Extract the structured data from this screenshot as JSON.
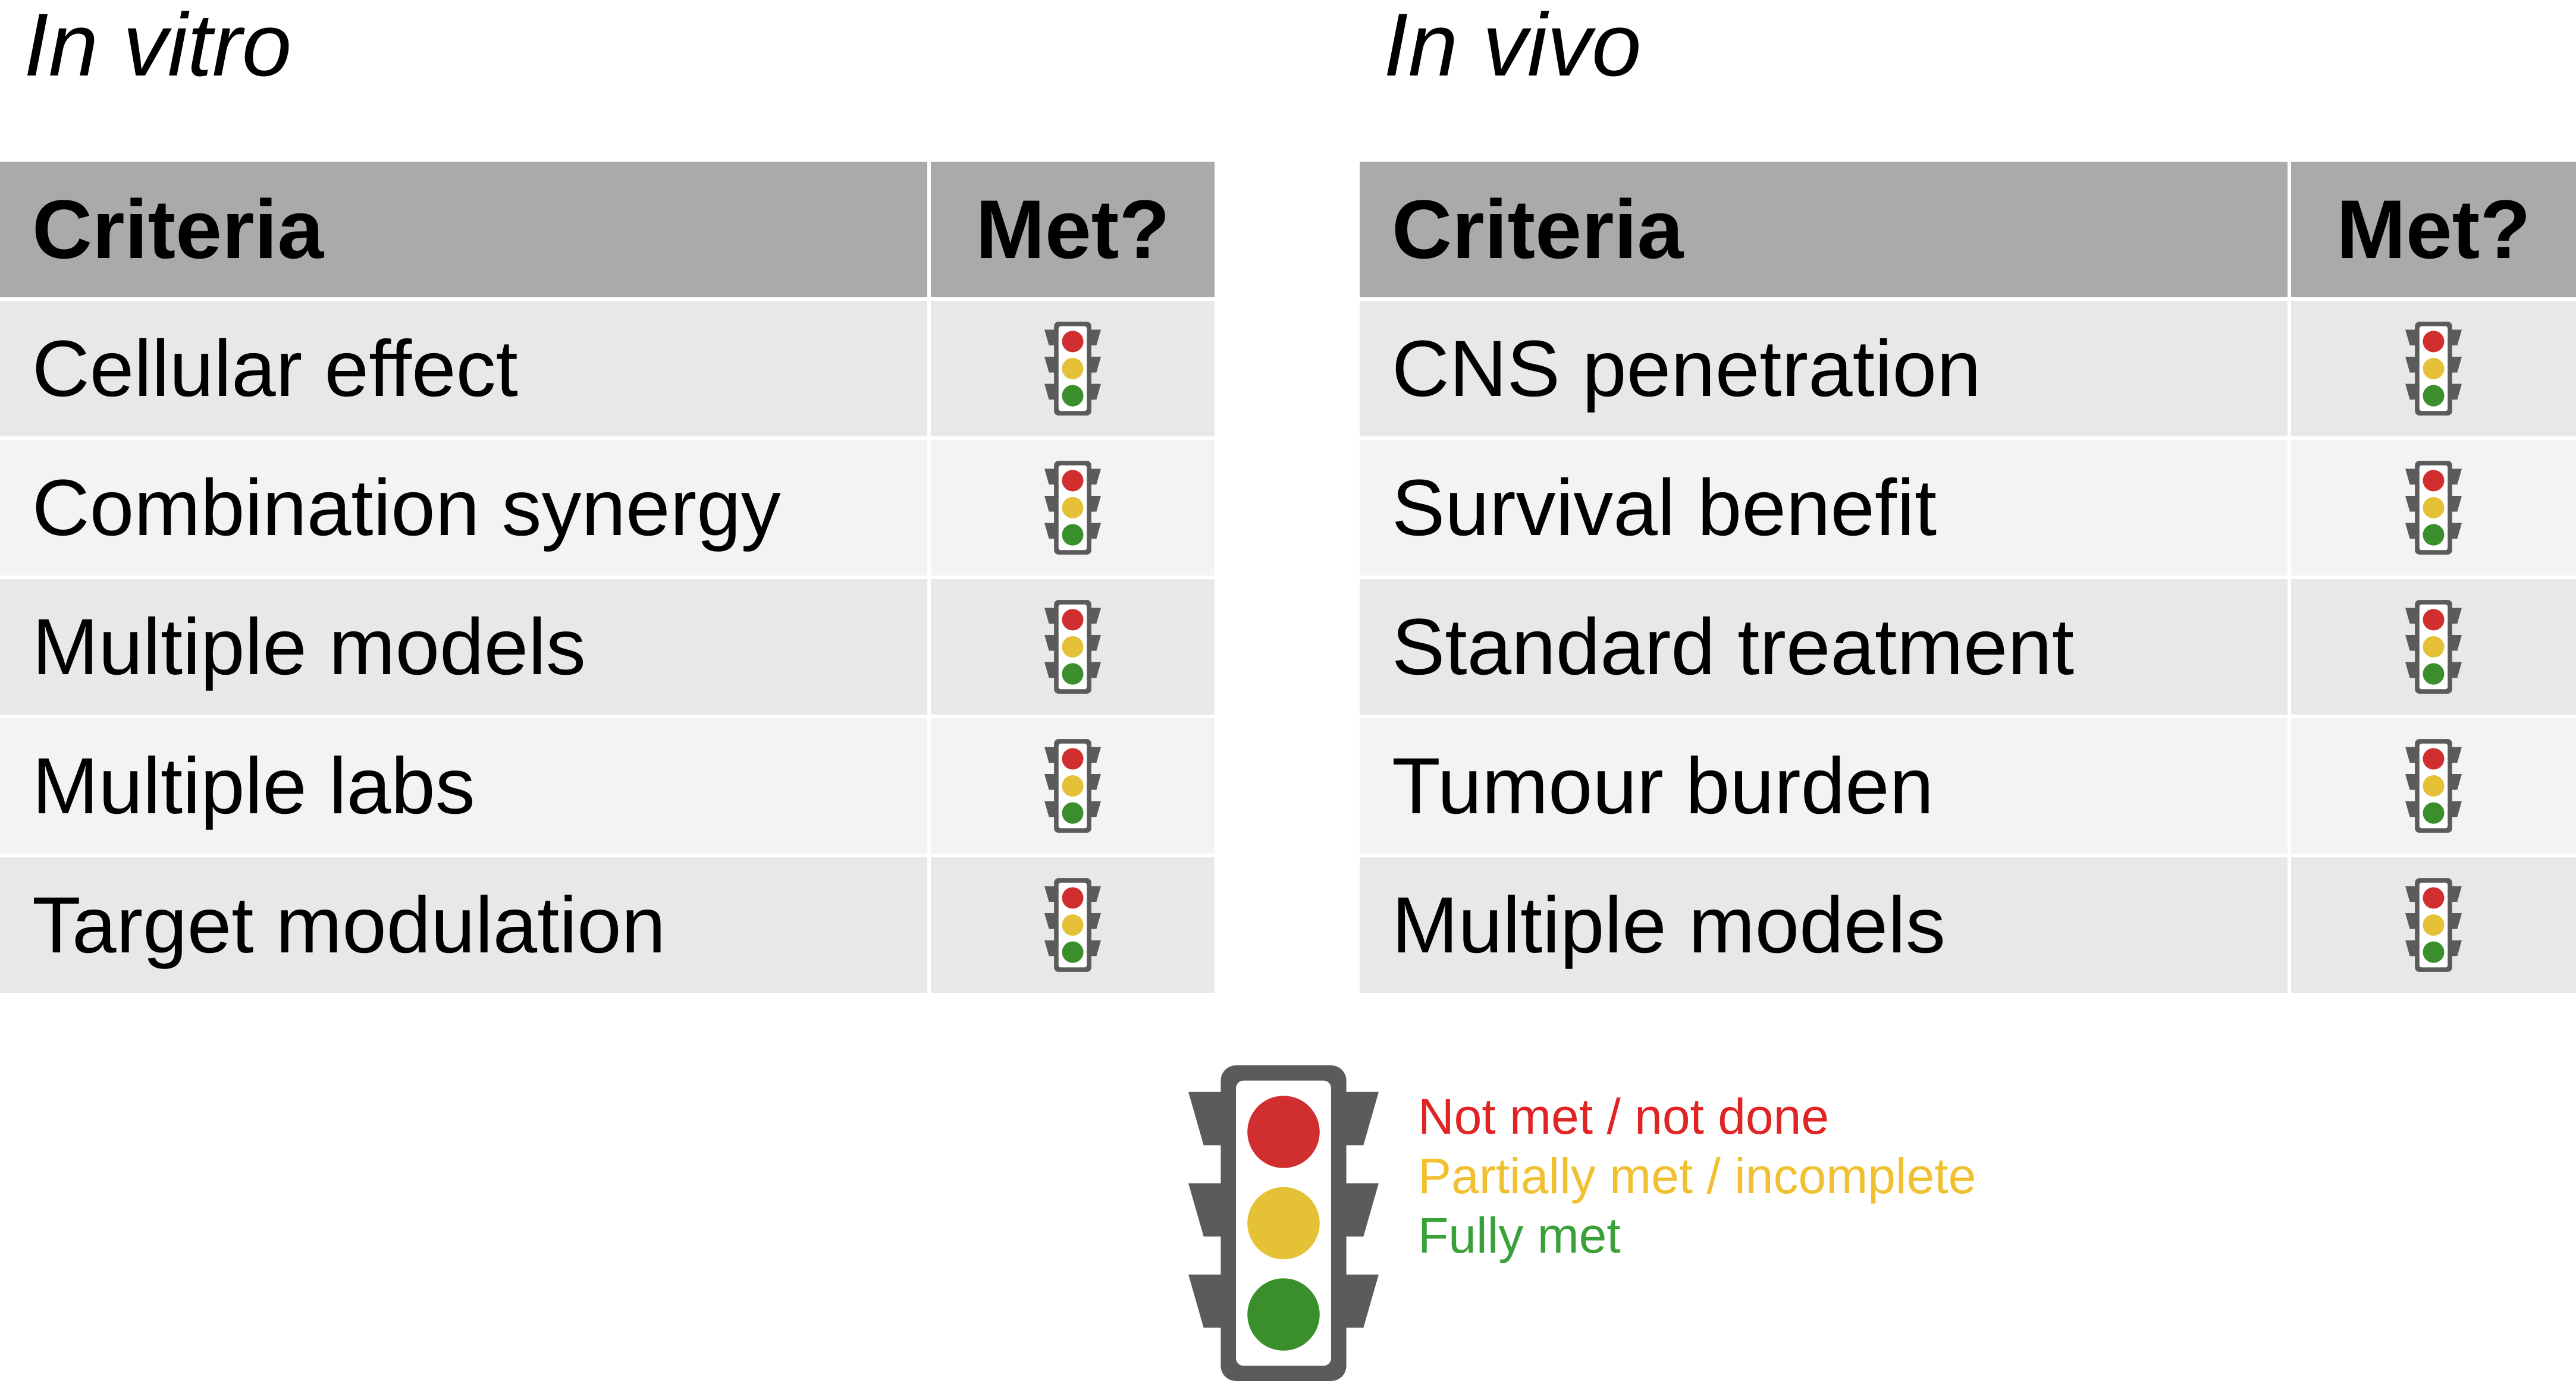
{
  "colors": {
    "light_red": "#d12f2f",
    "light_yellow": "#e4c136",
    "light_green": "#3a8f2c",
    "light_body": "#5b5b5b",
    "header_bg": "#aaaaab",
    "row_bg_dark": "#e7e8e8",
    "row_bg_light": "#f3f3f3",
    "legend_red_text": "#e02424",
    "legend_yellow_text": "#f0c030",
    "legend_green_text": "#3aa03a"
  },
  "icon": "traffic-light-icon",
  "tables": [
    {
      "heading": "In vitro",
      "header": {
        "criteria": "Criteria",
        "met": "Met?"
      },
      "rows": [
        "Cellular effect",
        "Combination synergy",
        "Multiple models",
        "Multiple labs",
        "Target modulation"
      ]
    },
    {
      "heading": "In vivo",
      "header": {
        "criteria": "Criteria",
        "met": "Met?"
      },
      "rows": [
        "CNS penetration",
        "Survival benefit",
        "Standard treatment",
        "Tumour burden",
        "Multiple models"
      ]
    }
  ],
  "legend": {
    "red": "Not met / not done",
    "yellow": "Partially met / incomplete",
    "green": "Fully met"
  }
}
